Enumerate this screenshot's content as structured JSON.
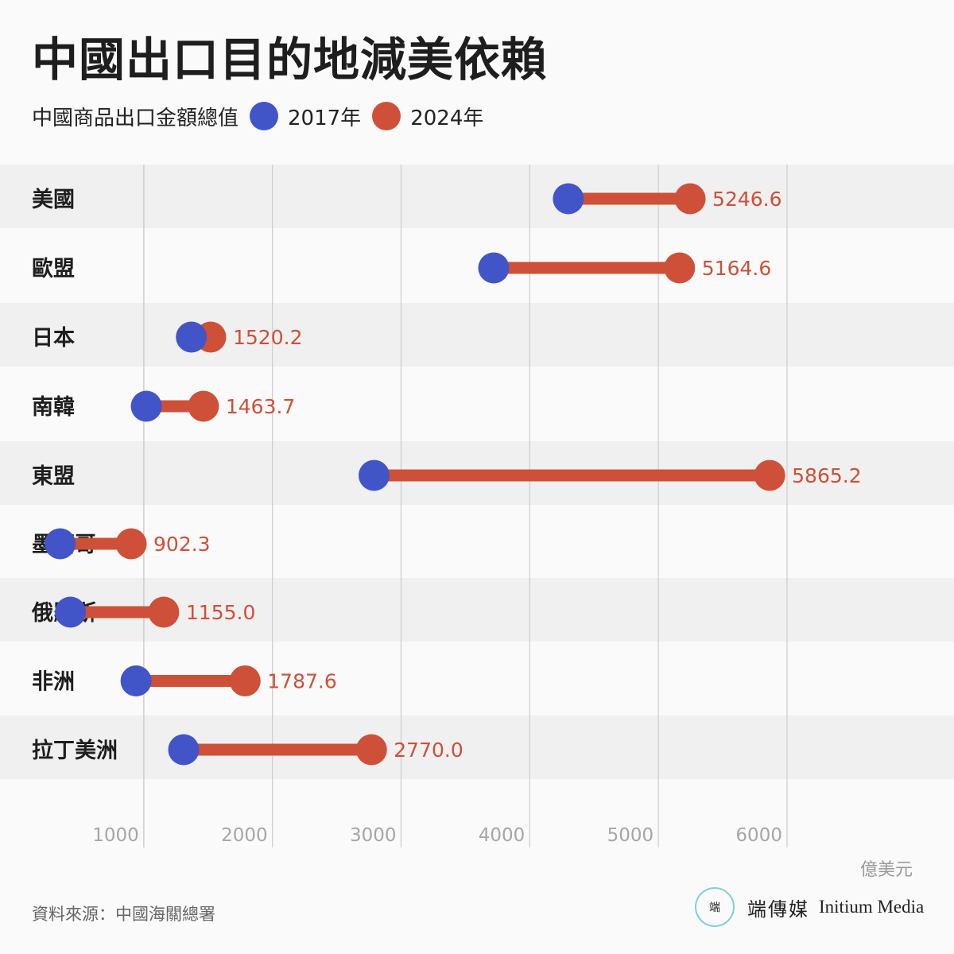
{
  "title": "中國出口目的地減美依賴",
  "legend": {
    "label": "中國商品出口金額總值",
    "series_2017": "2017年",
    "series_2024": "2024年"
  },
  "colors": {
    "series_2017": "#4255c8",
    "series_2024": "#cf5038",
    "row_stripe": "#f0f0f0",
    "grid": "#cccccc"
  },
  "chart_data": {
    "type": "dumbbell",
    "title": "中國出口目的地減美依賴",
    "subtitle": "中國商品出口金額總值",
    "ylabel": "",
    "xlabel": "億美元",
    "xlim": [
      0,
      6000
    ],
    "xticks": [
      1000,
      2000,
      3000,
      4000,
      5000,
      6000
    ],
    "grid": true,
    "legend_position": "top-left",
    "categories": [
      "美國",
      "歐盟",
      "日本",
      "南韓",
      "東盟",
      "墨西哥",
      "俄羅斯",
      "非洲",
      "拉丁美洲"
    ],
    "series": [
      {
        "name": "2017年",
        "values": [
          4300,
          3720,
          1370,
          1020,
          2790,
          350,
          430,
          940,
          1310
        ]
      },
      {
        "name": "2024年",
        "values": [
          5246.6,
          5164.6,
          1520.2,
          1463.7,
          5865.2,
          902.3,
          1155.0,
          1787.6,
          2770.0
        ]
      }
    ],
    "value_labels": [
      "5246.6",
      "5164.6",
      "1520.2",
      "1463.7",
      "5865.2",
      "902.3",
      "1155.0",
      "1787.6",
      "2770.0"
    ]
  },
  "axis_unit": "億美元",
  "source": "資料來源：中國海關總署",
  "brand": {
    "name_cn": "端傳媒",
    "name_en": "Initium Media",
    "logo_text": "端"
  }
}
